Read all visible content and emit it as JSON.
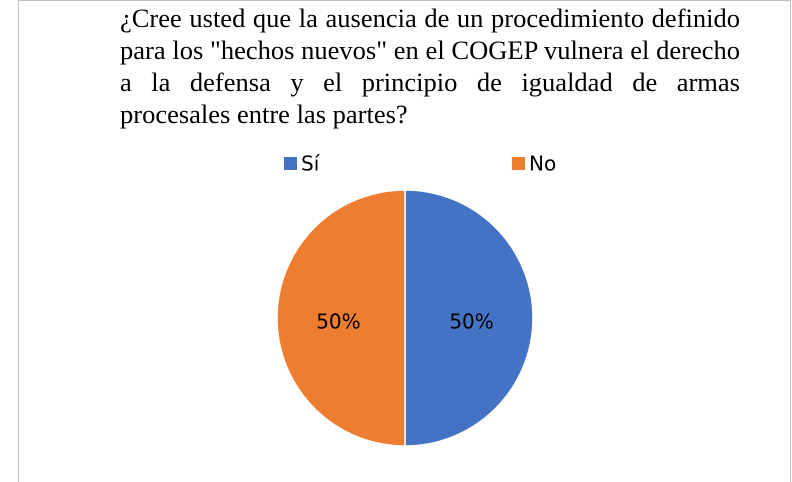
{
  "chart_data": {
    "type": "pie",
    "title": "¿Cree usted que la ausencia de un procedimiento definido para los \"hechos nuevos\" en el COGEP vulnera el derecho a la defensa y el principio de igualdad de armas procesales entre las partes?",
    "categories": [
      "Sí",
      "No"
    ],
    "values": [
      50,
      50
    ],
    "value_labels": [
      "50%",
      "50%"
    ],
    "colors": [
      "#4472c4",
      "#ed7d31"
    ],
    "legend": "top"
  }
}
